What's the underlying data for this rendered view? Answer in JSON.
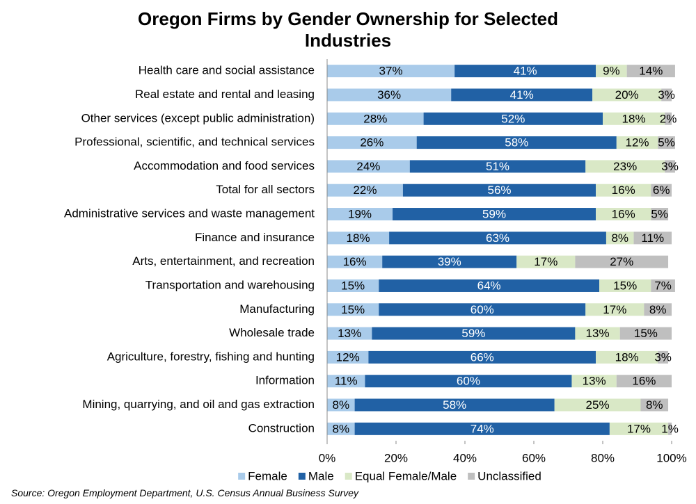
{
  "chart_data": {
    "type": "stacked-barh",
    "title": "Oregon Firms by Gender Ownership for Selected Industries",
    "source": "Source: Oregon Employment Department, U.S. Census Annual Business Survey",
    "categories": [
      "Health care and social assistance",
      "Real estate and rental and leasing",
      "Other services (except public administration)",
      "Professional, scientific, and technical services",
      "Accommodation and food services",
      "Total for all sectors",
      "Administrative services and waste management",
      "Finance and insurance",
      "Arts, entertainment, and recreation",
      "Transportation and warehousing",
      "Manufacturing",
      "Wholesale trade",
      "Agriculture, forestry, fishing and hunting",
      "Information",
      "Mining, quarrying, and oil and gas extraction",
      "Construction"
    ],
    "series": [
      {
        "name": "Female",
        "color": "#a9cbea",
        "label_color": "#000000",
        "values": [
          37,
          36,
          28,
          26,
          24,
          22,
          19,
          18,
          16,
          15,
          15,
          13,
          12,
          11,
          8,
          8
        ],
        "value_labels": [
          "37%",
          "36%",
          "28%",
          "26%",
          "24%",
          "22%",
          "19%",
          "18%",
          "16%",
          "15%",
          "15%",
          "13%",
          "12%",
          "11%",
          "8%",
          "8%"
        ]
      },
      {
        "name": "Male",
        "color": "#2161a5",
        "label_color": "#ffffff",
        "values": [
          41,
          41,
          52,
          58,
          51,
          56,
          59,
          63,
          39,
          64,
          60,
          59,
          66,
          60,
          58,
          74
        ],
        "value_labels": [
          "41%",
          "41%",
          "52%",
          "58%",
          "51%",
          "56%",
          "59%",
          "63%",
          "39%",
          "64%",
          "60%",
          "59%",
          "66%",
          "60%",
          "58%",
          "74%"
        ]
      },
      {
        "name": "Equal Female/Male",
        "color": "#d9e8c6",
        "label_color": "#000000",
        "values": [
          9,
          20,
          18,
          12,
          23,
          16,
          16,
          8,
          17,
          15,
          17,
          13,
          18,
          13,
          25,
          17
        ],
        "value_labels": [
          "9%",
          "20%",
          "18%",
          "12%",
          "23%",
          "16%",
          "16%",
          "8%",
          "17%",
          "15%",
          "17%",
          "13%",
          "18%",
          "13%",
          "25%",
          "17%"
        ]
      },
      {
        "name": "Unclassified",
        "color": "#bfbfbf",
        "label_color": "#000000",
        "values": [
          14,
          3,
          2,
          5,
          3,
          6,
          5,
          11,
          27,
          7,
          8,
          15,
          3,
          16,
          8,
          1
        ],
        "value_labels": [
          "14%",
          "3%",
          "2%",
          "5%",
          "3%",
          "6%",
          "5%",
          "11%",
          "27%",
          "7%",
          "8%",
          "15%",
          "3%",
          "16%",
          "8%",
          "1%"
        ]
      }
    ],
    "xlim": [
      0,
      100
    ],
    "xticks": [
      {
        "value": 0,
        "label": "0%"
      },
      {
        "value": 20,
        "label": "20%"
      },
      {
        "value": 40,
        "label": "40%"
      },
      {
        "value": 60,
        "label": "60%"
      },
      {
        "value": 80,
        "label": "80%"
      },
      {
        "value": 100,
        "label": "100%"
      }
    ],
    "legend": "bottom"
  }
}
